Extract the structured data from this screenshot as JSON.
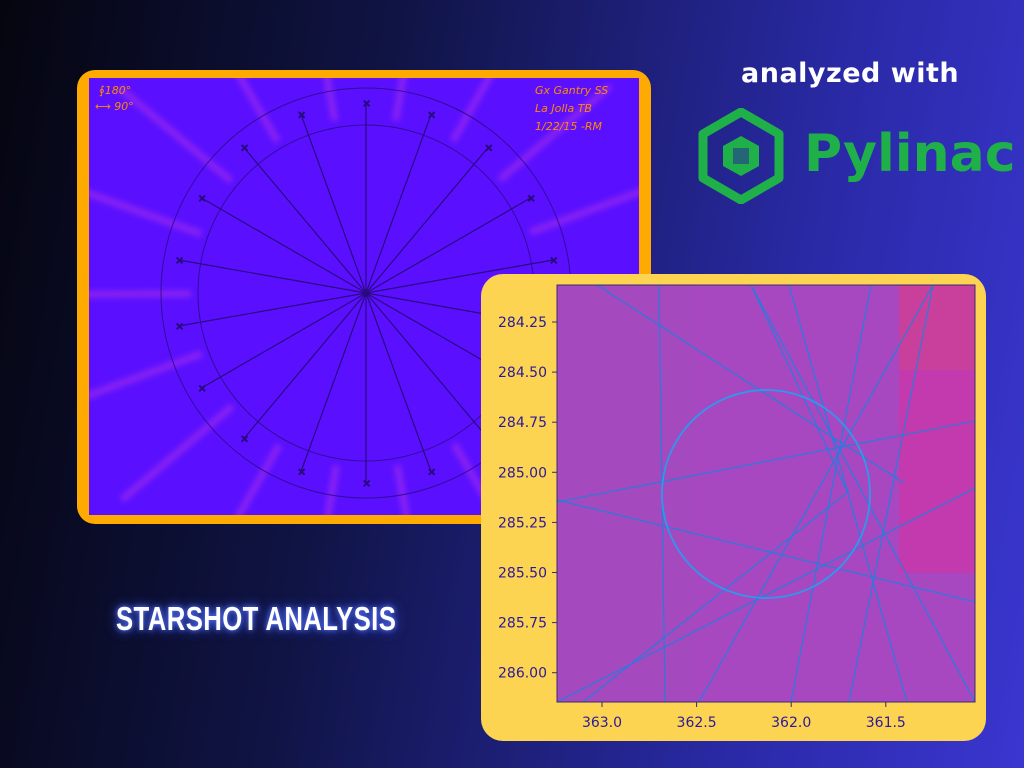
{
  "header": {
    "analyzed_label": "analyzed with",
    "brand_name": "Pylinac"
  },
  "title": "STARSHOT ANALYSIS",
  "image_annotations": {
    "top_left": [
      "∮180°",
      "⟷ 90°"
    ],
    "top_right": [
      "Gx Gantry SS",
      "La Jolla TB",
      "1/22/15 -RM"
    ]
  },
  "zoom_plot": {
    "x_ticks": [
      "363.0",
      "362.5",
      "362.0",
      "361.5"
    ],
    "y_ticks": [
      "284.25",
      "284.50",
      "284.75",
      "285.00",
      "285.25",
      "285.50",
      "285.75",
      "286.00"
    ]
  },
  "colors": {
    "logo_green": "#1fb04a",
    "panel_left_border": "#ffaa00",
    "panel_right_border": "#fdd352",
    "starshot_bg": "#5a10ff",
    "zoom_bg": "#a848c0",
    "line_blue": "#1e7fe0"
  }
}
